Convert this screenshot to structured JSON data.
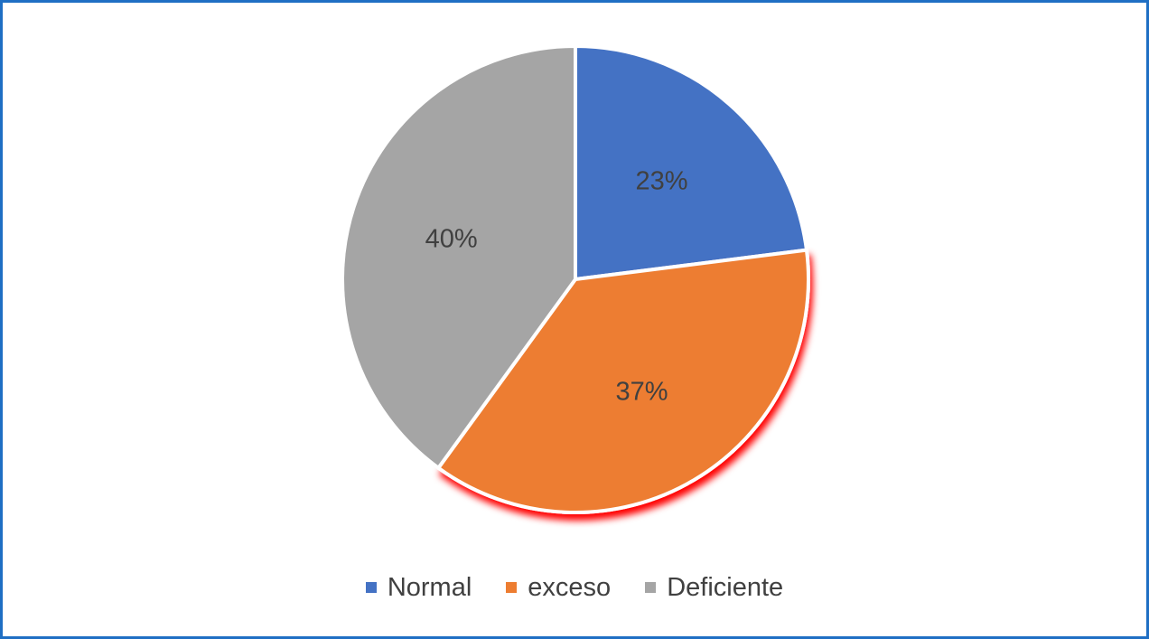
{
  "chart_data": {
    "type": "pie",
    "title": "",
    "categories": [
      "Normal",
      "exceso",
      "Deficiente"
    ],
    "values": [
      23,
      37,
      40
    ],
    "data_labels": [
      "23%",
      "37%",
      "40%"
    ],
    "colors": [
      "#4472c4",
      "#ed7d31",
      "#a5a5a5"
    ],
    "highlight_glow_color": "#ff0000",
    "start_angle_deg": 0,
    "direction": "clockwise",
    "legend_position": "bottom",
    "legend": {
      "items": [
        {
          "label": "Normal",
          "color": "#4472c4"
        },
        {
          "label": "exceso",
          "color": "#ed7d31"
        },
        {
          "label": "Deficiente",
          "color": "#a5a5a5"
        }
      ]
    }
  },
  "frame_border_color": "#1f6fc4"
}
